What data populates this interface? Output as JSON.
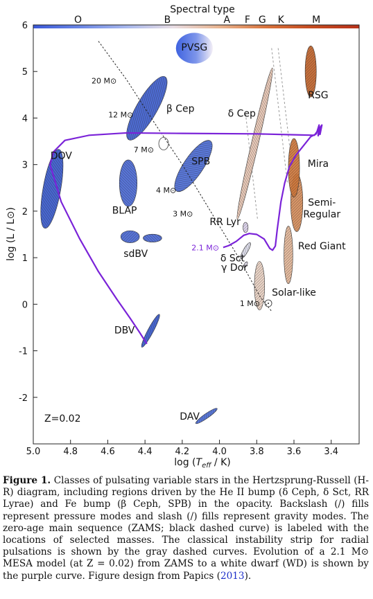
{
  "chart_data": {
    "type": "scatter",
    "top_axis_title": "Spectral type",
    "spectral_types": [
      {
        "label": "O",
        "logT": 4.76
      },
      {
        "label": "B",
        "logT": 4.28
      },
      {
        "label": "A",
        "logT": 3.96
      },
      {
        "label": "F",
        "logT": 3.85
      },
      {
        "label": "G",
        "logT": 3.77
      },
      {
        "label": "K",
        "logT": 3.67
      },
      {
        "label": "M",
        "logT": 3.48
      }
    ],
    "xlabel": "log (T_eff / K)",
    "ylabel": "log (L / L⊙)",
    "xlim": [
      5.0,
      3.25
    ],
    "ylim": [
      -3.0,
      6.0
    ],
    "xticks": [
      5.0,
      4.8,
      4.6,
      4.4,
      4.2,
      4.0,
      3.8,
      3.6,
      3.4
    ],
    "xtick_labels": [
      "5.0",
      "4.8",
      "4.6",
      "4.4",
      "4.2",
      "4.0",
      "3.8",
      "3.6",
      "3.4"
    ],
    "yticks": [
      -2,
      -1,
      0,
      1,
      2,
      3,
      4,
      5,
      6
    ],
    "ytick_labels": [
      "-2",
      "-1",
      "0",
      "1",
      "2",
      "3",
      "4",
      "5",
      "6"
    ],
    "annotation_z": "Z=0.02",
    "regions": [
      {
        "label": "PVSG",
        "cx": 4.135,
        "cy": 5.5,
        "rx": 0.395,
        "ry": 0.33,
        "angle": 0,
        "color": "#5173e8",
        "hatch": "none",
        "label_x": 4.135,
        "label_y": 5.45
      },
      {
        "label": "β Cep",
        "cx": 4.39,
        "cy": 4.21,
        "rx": 0.78,
        "ry": 0.22,
        "angle": 60,
        "color": "#3f5fd0",
        "hatch": "back",
        "label_x": 4.21,
        "label_y": 4.13
      },
      {
        "label": "SPB",
        "cx": 4.14,
        "cy": 2.97,
        "rx": 0.65,
        "ry": 0.21,
        "angle": 56,
        "color": "#4d6ed8",
        "hatch": "fwd",
        "label_x": 4.1,
        "label_y": 3.0
      },
      {
        "label": "DOV",
        "cx": 4.9,
        "cy": 2.48,
        "rx": 0.86,
        "ry": 0.19,
        "angle": 80,
        "color": "#3a5bcf",
        "hatch": "back",
        "label_x": 4.85,
        "label_y": 3.12
      },
      {
        "label": "BLAP",
        "cx": 4.49,
        "cy": 2.6,
        "rx": 0.5,
        "ry": 0.19,
        "angle": 90,
        "color": "#4b6ad8",
        "hatch": "back",
        "label_x": 4.51,
        "label_y": 1.95
      },
      {
        "label": "sdBV",
        "cx": 4.48,
        "cy": 1.45,
        "rx": 0.2,
        "ry": 0.13,
        "angle": 0,
        "color": "#4b6ad8",
        "hatch": "back",
        "label_x": 4.45,
        "label_y": 1.02
      },
      {
        "label": "",
        "cx": 4.36,
        "cy": 1.42,
        "rx": 0.2,
        "ry": 0.085,
        "angle": 0,
        "color": "#4b6ad8",
        "hatch": "fwd",
        "label_x": 4.36,
        "label_y": 1.42
      },
      {
        "label": "DBV",
        "cx": 4.37,
        "cy": -0.57,
        "rx": 0.4,
        "ry": 0.06,
        "angle": 62,
        "color": "#3a5bcf",
        "hatch": "back",
        "label_x": 4.51,
        "label_y": -0.63
      },
      {
        "label": "DAV",
        "cx": 4.07,
        "cy": -2.4,
        "rx": 0.28,
        "ry": 0.05,
        "angle": 35,
        "color": "#4d6ed8",
        "hatch": "back",
        "label_x": 4.16,
        "label_y": -2.48
      },
      {
        "label": "δ Cep",
        "cx": 3.81,
        "cy": 3.45,
        "rx": 1.67,
        "ry": 0.075,
        "angle": 77,
        "color": "#e8c7b4",
        "hatch": "back",
        "label_x": 3.88,
        "label_y": 4.03
      },
      {
        "label": "RR Lyr",
        "cx": 3.86,
        "cy": 1.65,
        "rx": 0.055,
        "ry": 0.11,
        "angle": 0,
        "color": "#e0d6ef",
        "hatch": "back",
        "label_x": 3.97,
        "label_y": 1.7
      },
      {
        "label": "δ Sct",
        "cx": 3.86,
        "cy": 1.15,
        "rx": 0.2,
        "ry": 0.05,
        "angle": 60,
        "color": "#dfdfee",
        "hatch": "back",
        "label_x": 3.93,
        "label_y": 0.92
      },
      {
        "label": "γ Dor",
        "cx": 3.86,
        "cy": 0.85,
        "rx": 0.07,
        "ry": 0.03,
        "angle": 60,
        "color": "#e2dcec",
        "hatch": "fwd",
        "label_x": 3.92,
        "label_y": 0.72
      },
      {
        "label": "Solar-like",
        "cx": 3.785,
        "cy": 0.4,
        "rx": 0.11,
        "ry": 0.52,
        "angle": 0,
        "color": "#ecd4c6",
        "hatch": "back",
        "label_x": 3.6,
        "label_y": 0.18
      },
      {
        "label": "Red Giant",
        "cx": 3.63,
        "cy": 1.06,
        "rx": 0.095,
        "ry": 0.62,
        "angle": 0,
        "color": "#e5b89a",
        "hatch": "back",
        "label_x": 3.45,
        "label_y": 1.18
      },
      {
        "label": "Semi-\nRegular",
        "cx": 3.585,
        "cy": 2.18,
        "rx": 0.13,
        "ry": 0.62,
        "angle": 0,
        "color": "#d98f5c",
        "hatch": "back",
        "label_x": 3.45,
        "label_y": 2.12
      },
      {
        "label": "Mira",
        "cx": 3.6,
        "cy": 2.93,
        "rx": 0.12,
        "ry": 0.63,
        "angle": 0,
        "color": "#d4793c",
        "hatch": "back",
        "label_x": 3.47,
        "label_y": 2.95
      },
      {
        "label": "RSG",
        "cx": 3.51,
        "cy": 5.0,
        "rx": 0.12,
        "ry": 0.55,
        "angle": 0,
        "color": "#c6662c",
        "hatch": "back",
        "label_x": 3.47,
        "label_y": 4.42
      }
    ],
    "zams_masses": [
      {
        "label": "20 M⊙",
        "logT": 4.53,
        "logL": 4.8
      },
      {
        "label": "12 M⊙",
        "logT": 4.44,
        "logL": 4.07
      },
      {
        "label": "7 M⊙",
        "logT": 4.33,
        "logL": 3.32
      },
      {
        "label": "4 M⊙",
        "logT": 4.21,
        "logL": 2.45
      },
      {
        "label": "3 M⊙",
        "logT": 4.12,
        "logL": 1.95
      },
      {
        "label": "2.1 M⊙",
        "logT": 3.98,
        "logL": 1.22
      },
      {
        "label": "1 M⊙",
        "logT": 3.76,
        "logL": 0.02
      }
    ],
    "zams_curve": [
      [
        4.65,
        5.65
      ],
      [
        4.5,
        4.83
      ],
      [
        4.35,
        3.9
      ],
      [
        4.2,
        3.0
      ],
      [
        4.0,
        1.68
      ],
      [
        3.9,
        1.02
      ],
      [
        3.78,
        0.15
      ],
      [
        3.72,
        -0.15
      ]
    ],
    "instability_strip": [
      [
        [
          3.86,
          4.1
        ],
        [
          3.795,
          1.8
        ]
      ],
      [
        [
          3.72,
          5.5
        ],
        [
          3.635,
          2.6
        ]
      ],
      [
        [
          3.685,
          5.5
        ],
        [
          3.6,
          2.6
        ]
      ]
    ],
    "mesa_track": {
      "label": "2.1 M⊙",
      "points": [
        [
          3.98,
          1.22
        ],
        [
          3.95,
          1.26
        ],
        [
          3.91,
          1.35
        ],
        [
          3.87,
          1.48
        ],
        [
          3.84,
          1.52
        ],
        [
          3.8,
          1.5
        ],
        [
          3.76,
          1.4
        ],
        [
          3.73,
          1.2
        ],
        [
          3.715,
          1.16
        ],
        [
          3.7,
          1.25
        ],
        [
          3.69,
          1.6
        ],
        [
          3.67,
          2.2
        ],
        [
          3.65,
          2.6
        ],
        [
          3.625,
          2.95
        ],
        [
          3.59,
          3.2
        ],
        [
          3.55,
          3.4
        ],
        [
          3.51,
          3.6
        ],
        [
          3.5,
          3.62
        ],
        [
          3.48,
          3.66
        ],
        [
          3.465,
          3.85
        ],
        [
          3.47,
          3.62
        ],
        [
          3.455,
          3.8
        ],
        [
          3.46,
          3.65
        ],
        [
          3.45,
          3.85
        ],
        [
          3.49,
          3.63
        ],
        [
          3.6,
          3.64
        ],
        [
          3.8,
          3.66
        ],
        [
          4.2,
          3.67
        ],
        [
          4.5,
          3.68
        ],
        [
          4.7,
          3.63
        ],
        [
          4.83,
          3.52
        ],
        [
          4.89,
          3.28
        ],
        [
          4.91,
          3.0
        ],
        [
          4.85,
          2.2
        ],
        [
          4.75,
          1.4
        ],
        [
          4.65,
          0.7
        ],
        [
          4.55,
          0.1
        ],
        [
          4.48,
          -0.3
        ],
        [
          4.43,
          -0.6
        ],
        [
          4.39,
          -0.85
        ]
      ]
    },
    "colorbar_stops": [
      "#3a58d8",
      "#6a86e5",
      "#a8b8ee",
      "#e8dde4",
      "#e9b48f",
      "#d9733c",
      "#c44a1f",
      "#b8321a"
    ]
  },
  "caption": {
    "label": "Figure 1.",
    "text_before": " Classes of pulsating variable stars in the Hertzsprung-Russell (H-R) diagram, including regions driven by the He II bump (δ Ceph, δ Sct, RR Lyrae) and Fe bump (β Ceph, SPB) in the opacity. Backslash (/) fills represent pressure modes and slash (/) fills represent gravity modes. The zero-age main sequence (ZAMS; black dashed curve) is labeled with the locations of selected masses. The classical instability strip for radial pulsations is shown by the gray dashed curves. Evolution of a 2.1 M⊙ MESA model (at Z = 0.02) from ZAMS to a white dwarf (WD) is shown by the purple curve. Figure design from Papics (",
    "cite_year": "2013",
    "text_after": ")."
  }
}
